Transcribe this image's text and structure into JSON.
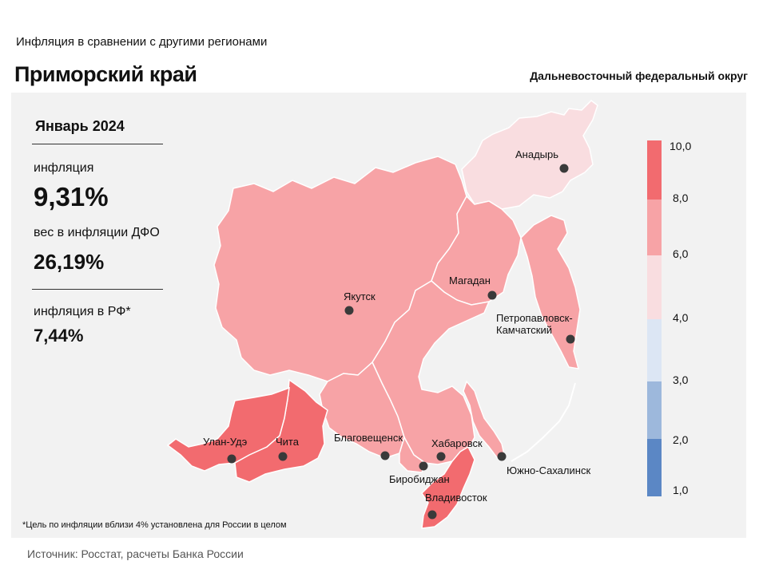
{
  "header": {
    "subtitle": "Инфляция  в сравнении  с другими  регионами",
    "title": "Приморский край",
    "district": "Дальневосточный федеральный округ"
  },
  "panel": {
    "month": "Январь 2024",
    "inflation_label": "инфляция",
    "inflation_value": "9,31%",
    "weight_label": "вес в инфляции  ДФО",
    "weight_value": "26,19%",
    "rf_label": "инфляция  в РФ*",
    "rf_value": "7,44%"
  },
  "legend": {
    "ticks": [
      "10,0",
      "8,0",
      "6,0",
      "4,0",
      "3,0",
      "2,0",
      "1,0"
    ],
    "colors": [
      "#f26b6f",
      "#f7a3a6",
      "#f9dde0",
      "#dce6f4",
      "#9db8dc",
      "#5b87c5"
    ]
  },
  "map": {
    "region_colors": {
      "high": "#f26b6f",
      "mid": "#f7a3a6",
      "low": "#f9dde0"
    },
    "cities": [
      {
        "name": "Анадырь"
      },
      {
        "name": "Магадан"
      },
      {
        "name": "Якутск"
      },
      {
        "name": "Петропавловск-"
      },
      {
        "name": "Камчатский"
      },
      {
        "name": "Улан-Удэ"
      },
      {
        "name": "Чита"
      },
      {
        "name": "Благовещенск"
      },
      {
        "name": "Хабаровск"
      },
      {
        "name": "Биробиджан"
      },
      {
        "name": "Южно-Сахалинск"
      },
      {
        "name": "Владивосток"
      }
    ]
  },
  "footnote": "*Цель по инфляции вблизи 4% установлена для России в целом",
  "source": "Источник: Росстат,  расчеты  Банка  России"
}
